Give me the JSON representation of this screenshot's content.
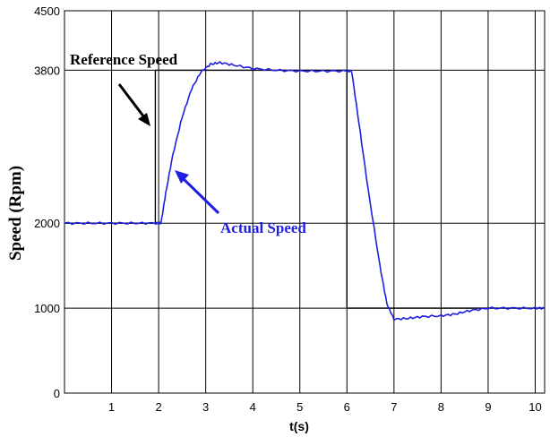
{
  "chart_data": {
    "type": "line",
    "xlabel": "t(s)",
    "ylabel": "Speed (Rpm)",
    "xlim": [
      0,
      10.2
    ],
    "ylim": [
      0,
      4500
    ],
    "x_ticks": [
      1,
      2,
      3,
      4,
      5,
      6,
      7,
      8,
      9,
      10
    ],
    "y_ticks": [
      0,
      1000,
      2000,
      3800,
      4500
    ],
    "grid": true,
    "series": [
      {
        "name": "Reference Speed",
        "color": "#000000",
        "points": [
          [
            0,
            2000
          ],
          [
            1.93,
            2000
          ],
          [
            1.93,
            3800
          ],
          [
            6.0,
            3800
          ],
          [
            6.0,
            1000
          ],
          [
            10.2,
            1000
          ]
        ]
      },
      {
        "name": "Actual Speed",
        "color": "#1f1fe0",
        "points": [
          [
            0,
            2000
          ],
          [
            0.5,
            2000
          ],
          [
            1.0,
            2000
          ],
          [
            1.5,
            2000
          ],
          [
            1.95,
            2000
          ],
          [
            2.05,
            2000
          ],
          [
            2.15,
            2350
          ],
          [
            2.3,
            2800
          ],
          [
            2.5,
            3250
          ],
          [
            2.7,
            3580
          ],
          [
            2.9,
            3780
          ],
          [
            3.1,
            3870
          ],
          [
            3.3,
            3890
          ],
          [
            3.6,
            3860
          ],
          [
            4.0,
            3820
          ],
          [
            4.5,
            3800
          ],
          [
            5.0,
            3790
          ],
          [
            5.5,
            3790
          ],
          [
            6.0,
            3790
          ],
          [
            6.1,
            3790
          ],
          [
            6.25,
            3200
          ],
          [
            6.45,
            2400
          ],
          [
            6.7,
            1500
          ],
          [
            6.85,
            1050
          ],
          [
            7.0,
            870
          ],
          [
            7.3,
            880
          ],
          [
            7.6,
            900
          ],
          [
            8.0,
            910
          ],
          [
            8.3,
            930
          ],
          [
            8.6,
            970
          ],
          [
            9.0,
            1000
          ],
          [
            9.5,
            1000
          ],
          [
            10.0,
            1000
          ],
          [
            10.2,
            1000
          ]
        ]
      }
    ],
    "annotations": [
      {
        "text": "Reference Speed",
        "x": 1.85,
        "y": 3800
      },
      {
        "text": "Actual Speed",
        "x": 2.35,
        "y": 3450
      }
    ]
  }
}
